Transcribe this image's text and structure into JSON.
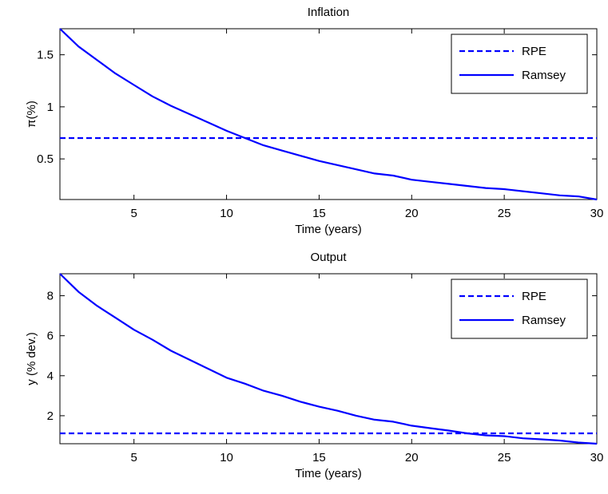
{
  "colors": {
    "line": "#0000ff",
    "axis": "#000000",
    "background": "#ffffff"
  },
  "chart_data": [
    {
      "type": "line",
      "title": "Inflation",
      "xlabel": "Time (years)",
      "ylabel": "π(%)",
      "xlim": [
        1,
        30
      ],
      "ylim": [
        0.11,
        1.75
      ],
      "xticks": [
        5,
        10,
        15,
        20,
        25,
        30
      ],
      "yticks": [
        0.5,
        1,
        1.5
      ],
      "ytick_labels": [
        "0.5",
        "1",
        "1.5"
      ],
      "grid": false,
      "legend_position": "top-right",
      "series": [
        {
          "name": "RPE",
          "style": "dashed",
          "x": [
            1,
            30
          ],
          "y": [
            0.7,
            0.7
          ]
        },
        {
          "name": "Ramsey",
          "style": "solid",
          "x": [
            1,
            2,
            3,
            4,
            5,
            6,
            7,
            8,
            9,
            10,
            11,
            12,
            13,
            14,
            15,
            16,
            17,
            18,
            19,
            20,
            21,
            22,
            23,
            24,
            25,
            26,
            27,
            28,
            29,
            30
          ],
          "y": [
            1.75,
            1.58,
            1.45,
            1.32,
            1.21,
            1.1,
            1.01,
            0.93,
            0.85,
            0.77,
            0.7,
            0.63,
            0.58,
            0.53,
            0.48,
            0.44,
            0.4,
            0.36,
            0.34,
            0.3,
            0.28,
            0.26,
            0.24,
            0.22,
            0.21,
            0.19,
            0.17,
            0.15,
            0.14,
            0.11
          ]
        }
      ]
    },
    {
      "type": "line",
      "title": "Output",
      "xlabel": "Time (years)",
      "ylabel": "y (% dev.)",
      "xlim": [
        1,
        30
      ],
      "ylim": [
        0.6,
        9.1
      ],
      "xticks": [
        5,
        10,
        15,
        20,
        25,
        30
      ],
      "yticks": [
        2,
        4,
        6,
        8
      ],
      "ytick_labels": [
        "2",
        "4",
        "6",
        "8"
      ],
      "grid": false,
      "legend_position": "top-right",
      "series": [
        {
          "name": "RPE",
          "style": "dashed",
          "x": [
            1,
            30
          ],
          "y": [
            1.12,
            1.12
          ]
        },
        {
          "name": "Ramsey",
          "style": "solid",
          "x": [
            1,
            2,
            3,
            4,
            5,
            6,
            7,
            8,
            9,
            10,
            11,
            12,
            13,
            14,
            15,
            16,
            17,
            18,
            19,
            20,
            21,
            22,
            23,
            24,
            25,
            26,
            27,
            28,
            29,
            30
          ],
          "y": [
            9.1,
            8.2,
            7.5,
            6.9,
            6.3,
            5.8,
            5.25,
            4.8,
            4.35,
            3.9,
            3.6,
            3.25,
            3.0,
            2.7,
            2.45,
            2.25,
            2.0,
            1.8,
            1.7,
            1.5,
            1.38,
            1.26,
            1.12,
            1.02,
            0.98,
            0.87,
            0.82,
            0.76,
            0.66,
            0.6
          ]
        }
      ]
    }
  ]
}
